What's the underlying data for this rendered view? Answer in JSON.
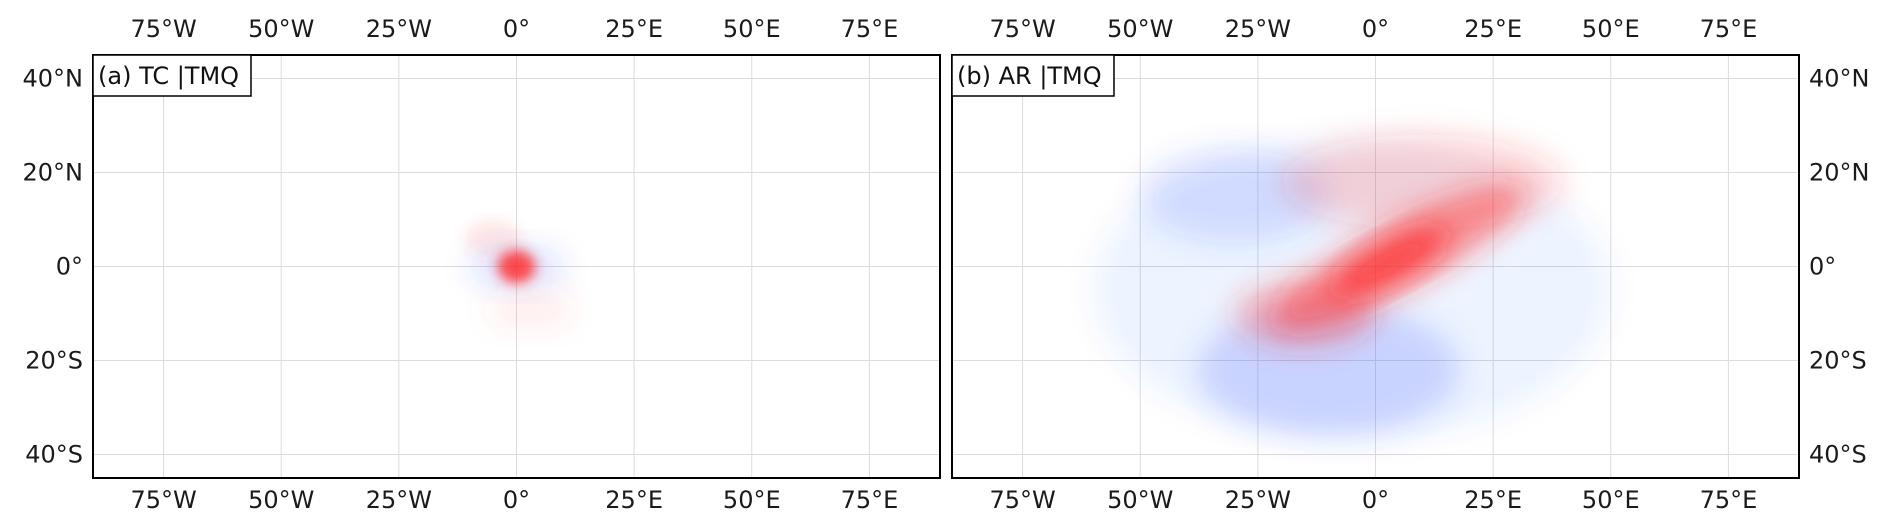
{
  "panels": [
    {
      "id": "a",
      "label": "(a) TC |TMQ",
      "lon_ticks": [
        "75°W",
        "50°W",
        "25°W",
        "0°",
        "25°E",
        "50°E",
        "75°E"
      ],
      "lon_values": [
        -75,
        -50,
        -25,
        0,
        25,
        50,
        75
      ],
      "lat_ticks": [
        "40°N",
        "20°N",
        "0°",
        "20°S",
        "40°S"
      ],
      "lat_values": [
        40,
        20,
        0,
        -20,
        -40
      ],
      "lon_range": [
        -90,
        90
      ],
      "lat_range": [
        -45,
        45
      ],
      "lat_labels_side": "left",
      "features": [
        {
          "type": "blob",
          "color": "#3050ff",
          "lon": 0,
          "lat": 0,
          "rx": 10,
          "ry": 4,
          "alpha": 0.18
        },
        {
          "type": "blob",
          "color": "#ff3030",
          "lon": 0,
          "lat": 0,
          "rx": 4,
          "ry": 3.5,
          "alpha": 0.85
        },
        {
          "type": "blob",
          "color": "#ff4040",
          "lon": -5,
          "lat": 6,
          "rx": 6,
          "ry": 4,
          "alpha": 0.12
        },
        {
          "type": "blob",
          "color": "#ff4040",
          "lon": 3,
          "lat": -9,
          "rx": 9,
          "ry": 4,
          "alpha": 0.1
        }
      ]
    },
    {
      "id": "b",
      "label": "(b) AR |TMQ",
      "lon_ticks": [
        "75°W",
        "50°W",
        "25°W",
        "0°",
        "25°E",
        "50°E",
        "75°E"
      ],
      "lon_values": [
        -75,
        -50,
        -25,
        0,
        25,
        50,
        75
      ],
      "lat_ticks": [
        "40°N",
        "20°N",
        "0°",
        "20°S",
        "40°S"
      ],
      "lat_values": [
        40,
        20,
        0,
        -20,
        -40
      ],
      "lon_range": [
        -90,
        90
      ],
      "lat_range": [
        -45,
        45
      ],
      "lat_labels_side": "right",
      "features": [
        {
          "type": "blob",
          "color": "#3050ff",
          "lon": -5,
          "lat": -5,
          "rx": 55,
          "ry": 32,
          "alpha": 0.07
        },
        {
          "type": "blob",
          "color": "#3050ff",
          "lon": -10,
          "lat": -22,
          "rx": 28,
          "ry": 14,
          "alpha": 0.2
        },
        {
          "type": "blob",
          "color": "#3050ff",
          "lon": -30,
          "lat": 15,
          "rx": 20,
          "ry": 10,
          "alpha": 0.15
        },
        {
          "type": "blob",
          "color": "#ff3030",
          "lon": 10,
          "lat": 18,
          "rx": 30,
          "ry": 10,
          "alpha": 0.18
        },
        {
          "type": "blob",
          "color": "#ff3030",
          "lon": -15,
          "lat": -10,
          "rx": 15,
          "ry": 7,
          "alpha": 0.3
        },
        {
          "type": "blob",
          "color": "#ff2020",
          "lon": 5,
          "lat": 2,
          "rx": 30,
          "ry": 7,
          "alpha": 0.45,
          "rotate": -28
        },
        {
          "type": "blob",
          "color": "#ff2020",
          "lon": 3,
          "lat": 1,
          "rx": 14,
          "ry": 4,
          "alpha": 0.7,
          "rotate": -28
        }
      ]
    }
  ]
}
